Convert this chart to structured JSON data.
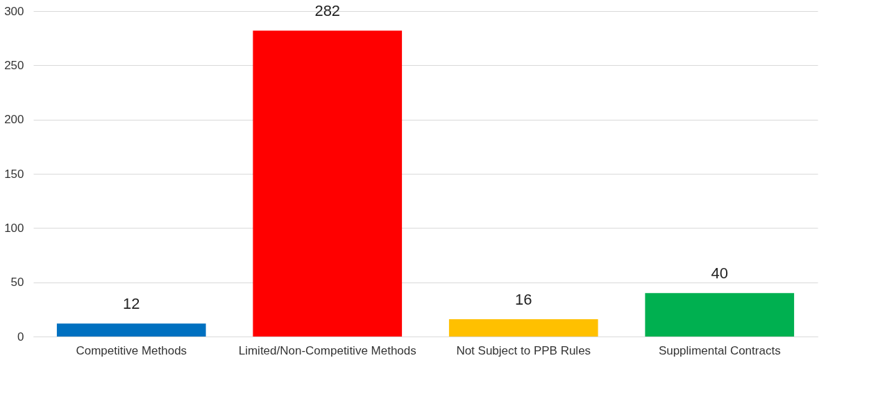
{
  "chart_data": {
    "type": "bar",
    "categories": [
      "Competitive Methods",
      "Limited/Non-Competitive Methods",
      "Not Subject to PPB Rules",
      "Supplimental Contracts"
    ],
    "values": [
      12,
      282,
      16,
      40
    ],
    "colors": [
      "#0070c0",
      "#ff0000",
      "#ffc000",
      "#00b050"
    ],
    "ylim": [
      0,
      300
    ],
    "yticks": [
      0,
      50,
      100,
      150,
      200,
      250,
      300
    ],
    "grid": "y",
    "data_labels": true
  }
}
